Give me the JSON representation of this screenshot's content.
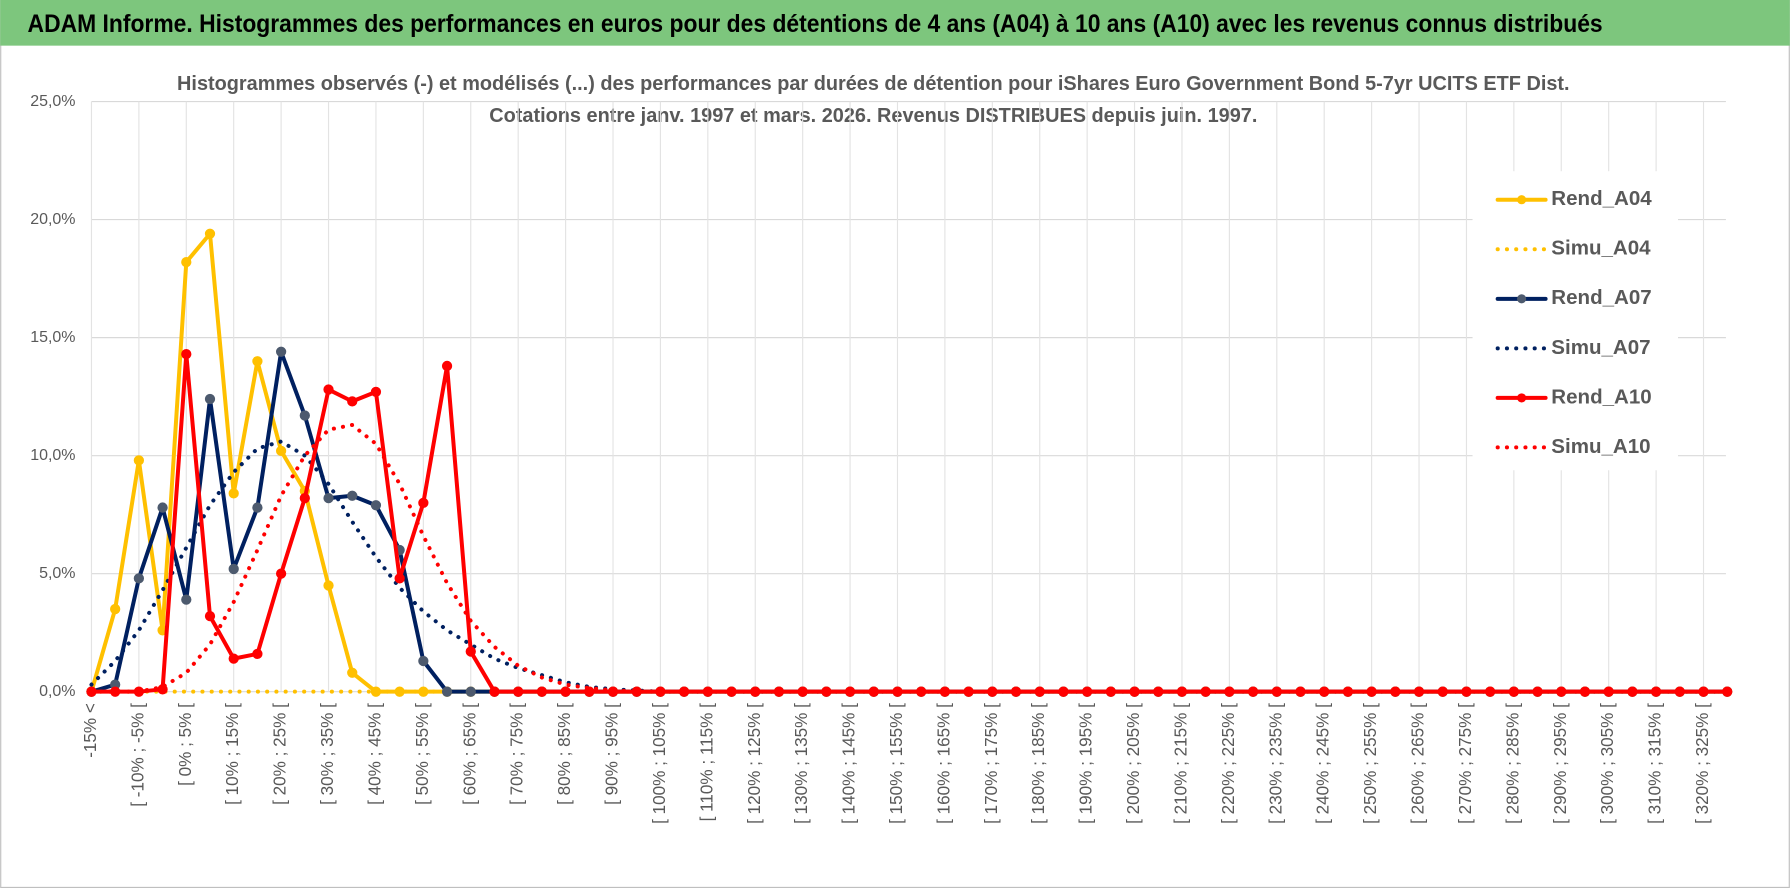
{
  "header": {
    "title": "ADAM Informe. Histogrammes des performances en euros pour des détentions de 4 ans (A04) à 10 ans (A10) avec les revenus connus distribués"
  },
  "chart_data": {
    "type": "line",
    "title": "Histogrammes observés (-) et modélisés (...) des performances par durées de détention pour iShares Euro Government Bond 5-7yr UCITS ETF Dist.",
    "subtitle": "Cotations entre janv. 1997 et mars. 2026. Revenus DISTRIBUES depuis juin. 1997.",
    "categories": [
      "-15% <",
      null,
      "[ -10% ; -5% [",
      null,
      "[ 0% ; 5% [",
      null,
      "[ 10% ; 15% [",
      null,
      "[ 20% ; 25% [",
      null,
      "[ 30% ; 35% [",
      null,
      "[ 40% ; 45% [",
      null,
      "[ 50% ; 55% [",
      null,
      "[ 60% ; 65% [",
      null,
      "[ 70% ; 75% [",
      null,
      "[ 80% ; 85% [",
      null,
      "[ 90% ; 95% [",
      null,
      "[ 100% ; 105% [",
      null,
      "[ 110% ; 115% [",
      null,
      "[ 120% ; 125% [",
      null,
      "[ 130% ; 135% [",
      null,
      "[ 140% ; 145% [",
      null,
      "[ 150% ; 155% [",
      null,
      "[ 160% ; 165% [",
      null,
      "[ 170% ; 175% [",
      null,
      "[ 180% ; 185% [",
      null,
      "[ 190% ; 195% [",
      null,
      "[ 200% ; 205% [",
      null,
      "[ 210% ; 215% [",
      null,
      "[ 220% ; 225% [",
      null,
      "[ 230% ; 235% [",
      null,
      "[ 240% ; 245% [",
      null,
      "[ 250% ; 255% [",
      null,
      "[ 260% ; 265% [",
      null,
      "[ 270% ; 275% [",
      null,
      "[ 280% ; 285% [",
      null,
      "[ 290% ; 295% [",
      null,
      "[ 300% ; 305% [",
      null,
      "[ 310% ; 315% [",
      null,
      "[ 320% ; 325% [",
      null
    ],
    "series": [
      {
        "name": "Rend_A04",
        "color": "#ffc000",
        "style": "solid",
        "markers": true,
        "values": [
          0,
          3.5,
          9.8,
          2.6,
          18.2,
          19.4,
          8.4,
          14.0,
          10.2,
          8.5,
          4.5,
          0.8,
          0,
          0,
          0,
          0,
          0,
          0,
          0,
          0,
          0,
          0,
          0,
          0,
          0,
          0,
          0,
          0,
          0,
          0,
          0,
          0,
          0,
          0,
          0,
          0,
          0,
          0,
          0,
          0,
          0,
          0,
          0,
          0,
          0,
          0,
          0,
          0,
          0,
          0,
          0,
          0,
          0,
          0,
          0,
          0,
          0,
          0,
          0,
          0,
          0,
          0,
          0,
          0,
          0,
          0,
          0,
          0,
          0,
          0
        ]
      },
      {
        "name": "Simu_A04",
        "color": "#ffc000",
        "style": "dotted",
        "markers": false,
        "values": [
          0,
          0,
          0,
          0,
          0,
          0,
          0,
          0,
          0,
          0,
          0,
          0,
          0,
          0,
          0,
          0,
          0,
          0,
          0,
          0,
          0,
          0,
          0,
          0,
          0,
          0,
          0,
          0,
          0,
          0,
          0,
          0,
          0,
          0,
          0,
          0,
          0,
          0,
          0,
          0,
          0,
          0,
          0,
          0,
          0,
          0,
          0,
          0,
          0,
          0,
          0,
          0,
          0,
          0,
          0,
          0,
          0,
          0,
          0,
          0,
          0,
          0,
          0,
          0,
          0,
          0,
          0,
          0,
          0,
          0
        ]
      },
      {
        "name": "Rend_A07",
        "color": "#002060",
        "marker_color": "#4d5a6e",
        "style": "solid",
        "markers": true,
        "values": [
          0,
          0.3,
          4.8,
          7.8,
          3.9,
          12.4,
          5.2,
          7.8,
          14.4,
          11.7,
          8.2,
          8.3,
          7.9,
          6.0,
          1.3,
          0,
          0,
          0,
          0,
          0,
          0,
          0,
          0,
          0,
          0,
          0,
          0,
          0,
          0,
          0,
          0,
          0,
          0,
          0,
          0,
          0,
          0,
          0,
          0,
          0,
          0,
          0,
          0,
          0,
          0,
          0,
          0,
          0,
          0,
          0,
          0,
          0,
          0,
          0,
          0,
          0,
          0,
          0,
          0,
          0,
          0,
          0,
          0,
          0,
          0,
          0,
          0,
          0,
          0,
          0
        ]
      },
      {
        "name": "Simu_A07",
        "color": "#002060",
        "style": "dotted",
        "markers": false,
        "values": [
          0.3,
          1.3,
          2.6,
          4.3,
          6.1,
          7.9,
          9.3,
          10.3,
          10.6,
          10.0,
          8.8,
          7.2,
          5.7,
          4.4,
          3.4,
          2.6,
          2.0,
          1.4,
          1.0,
          0.7,
          0.4,
          0.2,
          0.1,
          0.05,
          0,
          0,
          0,
          0,
          0,
          0,
          0,
          0,
          0,
          0,
          0,
          0,
          0,
          0,
          0,
          0,
          0,
          0,
          0,
          0,
          0,
          0,
          0,
          0,
          0,
          0,
          0,
          0,
          0,
          0,
          0,
          0,
          0,
          0,
          0,
          0,
          0,
          0,
          0,
          0,
          0,
          0,
          0,
          0,
          0,
          0
        ]
      },
      {
        "name": "Rend_A10",
        "color": "#ff0000",
        "style": "solid",
        "markers": true,
        "values": [
          0,
          0,
          0,
          0.1,
          14.3,
          3.2,
          1.4,
          1.6,
          5.0,
          8.2,
          12.8,
          12.3,
          12.7,
          4.8,
          8.0,
          13.8,
          1.7,
          0,
          0,
          0,
          0,
          0,
          0,
          0,
          0,
          0,
          0,
          0,
          0,
          0,
          0,
          0,
          0,
          0,
          0,
          0,
          0,
          0,
          0,
          0,
          0,
          0,
          0,
          0,
          0,
          0,
          0,
          0,
          0,
          0,
          0,
          0,
          0,
          0,
          0,
          0,
          0,
          0,
          0,
          0,
          0,
          0,
          0,
          0,
          0,
          0,
          0,
          0,
          0,
          0
        ]
      },
      {
        "name": "Simu_A10",
        "color": "#ff0000",
        "style": "dotted",
        "markers": false,
        "values": [
          0,
          0,
          0,
          0.2,
          0.8,
          2.0,
          3.8,
          6.0,
          8.3,
          10.0,
          11.1,
          11.3,
          10.5,
          8.8,
          6.6,
          4.6,
          3.0,
          1.9,
          1.1,
          0.6,
          0.3,
          0.15,
          0.06,
          0,
          0,
          0,
          0,
          0,
          0,
          0,
          0,
          0,
          0,
          0,
          0,
          0,
          0,
          0,
          0,
          0,
          0,
          0,
          0,
          0,
          0,
          0,
          0,
          0,
          0,
          0,
          0,
          0,
          0,
          0,
          0,
          0,
          0,
          0,
          0,
          0,
          0,
          0,
          0,
          0,
          0,
          0,
          0,
          0,
          0,
          0
        ]
      }
    ],
    "ylim": [
      0,
      25
    ],
    "yticks": [
      {
        "value": 0,
        "label": "0,0%"
      },
      {
        "value": 5,
        "label": "5,0%"
      },
      {
        "value": 10,
        "label": "10,0%"
      },
      {
        "value": 15,
        "label": "15,0%"
      },
      {
        "value": 20,
        "label": "20,0%"
      },
      {
        "value": 25,
        "label": "25,0%"
      }
    ],
    "grid": true,
    "legend": "right"
  }
}
